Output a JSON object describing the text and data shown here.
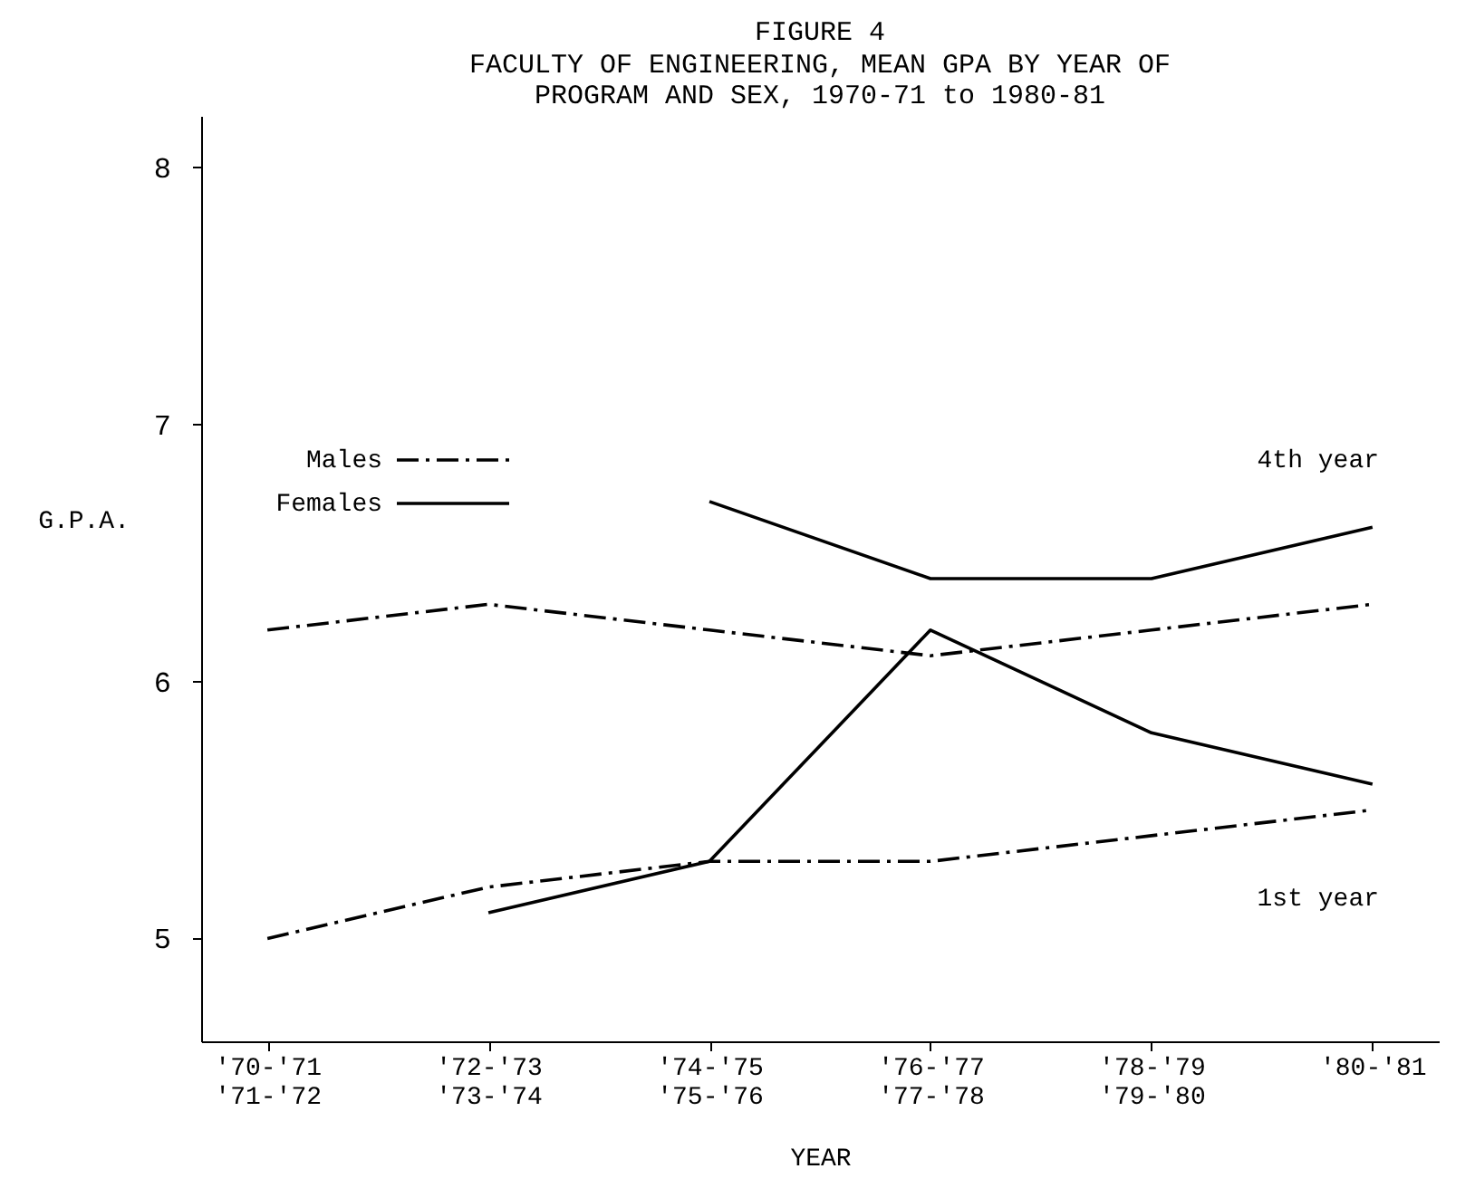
{
  "chart_data": {
    "type": "line",
    "title": "FIGURE 4",
    "subtitle": "FACULTY OF ENGINEERING, MEAN GPA BY YEAR OF\nPROGRAM AND SEX, 1970-71 to 1980-81",
    "xlabel": "YEAR",
    "ylabel": "G.P.A.",
    "categories": [
      "'70-'71\n'71-'72",
      "'72-'73\n'73-'74",
      "'74-'75\n'75-'76",
      "'76-'77\n'77-'78",
      "'78-'79\n'79-'80",
      "'80-'81"
    ],
    "series": [
      {
        "name": "Males",
        "color": "#000000",
        "line_style": "dashed",
        "values": [
          6.2,
          6.3,
          6.2,
          6.1,
          6.2,
          6.3
        ]
      },
      {
        "name": "Females",
        "color": "#000000",
        "line_style": "solid",
        "values": [
          null,
          null,
          6.7,
          6.4,
          6.4,
          6.6
        ]
      },
      {
        "color": "#000000",
        "line_style": "dashed",
        "values": [
          5.0,
          5.2,
          5.3,
          5.3,
          5.4,
          5.5
        ]
      },
      {
        "color": "#000000",
        "line_style": "solid",
        "values": [
          null,
          5.1,
          5.3,
          6.2,
          5.8,
          5.6
        ]
      }
    ],
    "annotations": [
      "4th year",
      "1st year"
    ],
    "ylim": [
      4.6,
      8.2
    ],
    "yticks": [
      5,
      6,
      7,
      8
    ],
    "grid": false,
    "legend": "top left",
    "marker": "none"
  }
}
